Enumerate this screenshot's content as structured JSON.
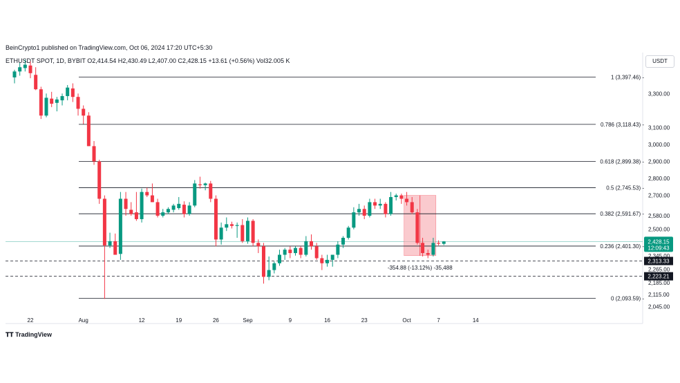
{
  "header": {
    "published": "BeinCrypto1 published on TradingView.com, Oct 06, 2024 17:20 UTC+5:30",
    "symbol": "ETHUSDT SPOT, 1D, BYBIT",
    "ohlc": "O2,414.54  H2,430.49  L2,407.00  C2,428.15  +13.61 (+0.56%)  Vol32.005 K",
    "currency": "USDT"
  },
  "footer": {
    "brand": "TradingView"
  },
  "colors": {
    "up": "#089981",
    "down": "#f23645",
    "zone": "#f7a8ae"
  },
  "chart_data": {
    "type": "candlestick",
    "title": "ETHUSDT SPOT, 1D, BYBIT",
    "ylim": [
      2010,
      3460
    ],
    "y_ticks": [
      3300,
      3100,
      3000,
      2900,
      2800,
      2700,
      2580,
      2500,
      2345,
      2265,
      2185,
      2115,
      2045
    ],
    "y_tick_labels": [
      "3,300.00",
      "3,100.00",
      "3,000.00",
      "2,900.00",
      "2,800.00",
      "2,700.00",
      "2,580.00",
      "2,500.00",
      "2,345.00",
      "2,265.00",
      "2,185.00",
      "2,115.00",
      "2,045.00"
    ],
    "x_ticks": [
      {
        "day": 0,
        "label": "22"
      },
      {
        "day": 10,
        "label": "Aug"
      },
      {
        "day": 21,
        "label": "12"
      },
      {
        "day": 28,
        "label": "19"
      },
      {
        "day": 35,
        "label": "26"
      },
      {
        "day": 41,
        "label": "Sep"
      },
      {
        "day": 49,
        "label": "9"
      },
      {
        "day": 56,
        "label": "16"
      },
      {
        "day": 63,
        "label": "23"
      },
      {
        "day": 71,
        "label": "Oct"
      },
      {
        "day": 77,
        "label": "7"
      },
      {
        "day": 84,
        "label": "14"
      }
    ],
    "fib_levels": [
      {
        "ratio": "1",
        "price": 3397.46,
        "label": "1 (3,397.46)"
      },
      {
        "ratio": "0.786",
        "price": 3118.43,
        "label": "0.786 (3,118.43)"
      },
      {
        "ratio": "0.618",
        "price": 2899.38,
        "label": "0.618 (2,899.38)"
      },
      {
        "ratio": "0.5",
        "price": 2745.53,
        "label": "0.5 (2,745.53)"
      },
      {
        "ratio": "0.382",
        "price": 2591.67,
        "label": "0.382 (2,591.67)"
      },
      {
        "ratio": "0.236",
        "price": 2401.3,
        "label": "0.236 (2,401.30)"
      },
      {
        "ratio": "0",
        "price": 2093.59,
        "label": "0 (2,093.59)"
      }
    ],
    "dashed_levels": [
      2313.33,
      2223.21
    ],
    "dashed_labels": [
      "2,313.33",
      "2,223.21"
    ],
    "last_price": {
      "value": 2428.15,
      "label": "2,428.15",
      "countdown": "12:09:43"
    },
    "measure_label": "-354.88 (-13.12%) -35,488",
    "candles": [
      {
        "day": -3,
        "o": 3395,
        "h": 3440,
        "l": 3360,
        "c": 3430
      },
      {
        "day": -2,
        "o": 3430,
        "h": 3480,
        "l": 3405,
        "c": 3455
      },
      {
        "day": -1,
        "o": 3450,
        "h": 3500,
        "l": 3430,
        "c": 3470
      },
      {
        "day": 0,
        "o": 3465,
        "h": 3490,
        "l": 3390,
        "c": 3420
      },
      {
        "day": 1,
        "o": 3410,
        "h": 3455,
        "l": 3320,
        "c": 3325
      },
      {
        "day": 2,
        "o": 3325,
        "h": 3340,
        "l": 3150,
        "c": 3170
      },
      {
        "day": 3,
        "o": 3170,
        "h": 3300,
        "l": 3160,
        "c": 3275
      },
      {
        "day": 4,
        "o": 3270,
        "h": 3310,
        "l": 3220,
        "c": 3240
      },
      {
        "day": 5,
        "o": 3245,
        "h": 3280,
        "l": 3195,
        "c": 3265
      },
      {
        "day": 6,
        "o": 3260,
        "h": 3300,
        "l": 3230,
        "c": 3285
      },
      {
        "day": 7,
        "o": 3285,
        "h": 3350,
        "l": 3260,
        "c": 3335
      },
      {
        "day": 8,
        "o": 3330,
        "h": 3360,
        "l": 3250,
        "c": 3280
      },
      {
        "day": 9,
        "o": 3280,
        "h": 3300,
        "l": 3170,
        "c": 3210
      },
      {
        "day": 10,
        "o": 3210,
        "h": 3230,
        "l": 3120,
        "c": 3170
      },
      {
        "day": 11,
        "o": 3170,
        "h": 3190,
        "l": 2990,
        "c": 2990
      },
      {
        "day": 12,
        "o": 2990,
        "h": 3020,
        "l": 2880,
        "c": 2900
      },
      {
        "day": 13,
        "o": 2900,
        "h": 2910,
        "l": 2650,
        "c": 2680
      },
      {
        "day": 14,
        "o": 2680,
        "h": 2700,
        "l": 2090,
        "c": 2405
      },
      {
        "day": 15,
        "o": 2405,
        "h": 2480,
        "l": 2390,
        "c": 2430
      },
      {
        "day": 16,
        "o": 2430,
        "h": 2475,
        "l": 2350,
        "c": 2350
      },
      {
        "day": 17,
        "o": 2355,
        "h": 2720,
        "l": 2320,
        "c": 2680
      },
      {
        "day": 18,
        "o": 2680,
        "h": 2720,
        "l": 2580,
        "c": 2620
      },
      {
        "day": 19,
        "o": 2615,
        "h": 2660,
        "l": 2580,
        "c": 2590
      },
      {
        "day": 20,
        "o": 2600,
        "h": 2720,
        "l": 2550,
        "c": 2560
      },
      {
        "day": 21,
        "o": 2560,
        "h": 2740,
        "l": 2540,
        "c": 2720
      },
      {
        "day": 22,
        "o": 2720,
        "h": 2745,
        "l": 2690,
        "c": 2700
      },
      {
        "day": 23,
        "o": 2700,
        "h": 2770,
        "l": 2660,
        "c": 2660
      },
      {
        "day": 24,
        "o": 2660,
        "h": 2680,
        "l": 2570,
        "c": 2580
      },
      {
        "day": 25,
        "o": 2580,
        "h": 2620,
        "l": 2570,
        "c": 2600
      },
      {
        "day": 26,
        "o": 2600,
        "h": 2630,
        "l": 2590,
        "c": 2620
      },
      {
        "day": 27,
        "o": 2615,
        "h": 2650,
        "l": 2600,
        "c": 2640
      },
      {
        "day": 28,
        "o": 2625,
        "h": 2690,
        "l": 2615,
        "c": 2650
      },
      {
        "day": 29,
        "o": 2645,
        "h": 2665,
        "l": 2570,
        "c": 2590
      },
      {
        "day": 30,
        "o": 2590,
        "h": 2660,
        "l": 2580,
        "c": 2640
      },
      {
        "day": 31,
        "o": 2640,
        "h": 2790,
        "l": 2630,
        "c": 2770
      },
      {
        "day": 32,
        "o": 2765,
        "h": 2810,
        "l": 2740,
        "c": 2760
      },
      {
        "day": 33,
        "o": 2760,
        "h": 2775,
        "l": 2730,
        "c": 2770
      },
      {
        "day": 34,
        "o": 2770,
        "h": 2785,
        "l": 2660,
        "c": 2680
      },
      {
        "day": 35,
        "o": 2680,
        "h": 2700,
        "l": 2400,
        "c": 2440
      },
      {
        "day": 36,
        "o": 2440,
        "h": 2540,
        "l": 2410,
        "c": 2510
      },
      {
        "day": 37,
        "o": 2510,
        "h": 2570,
        "l": 2490,
        "c": 2530
      },
      {
        "day": 38,
        "o": 2530,
        "h": 2545,
        "l": 2505,
        "c": 2520
      },
      {
        "day": 39,
        "o": 2520,
        "h": 2540,
        "l": 2450,
        "c": 2525
      },
      {
        "day": 40,
        "o": 2525,
        "h": 2560,
        "l": 2420,
        "c": 2430
      },
      {
        "day": 41,
        "o": 2430,
        "h": 2570,
        "l": 2415,
        "c": 2550
      },
      {
        "day": 42,
        "o": 2550,
        "h": 2560,
        "l": 2400,
        "c": 2420
      },
      {
        "day": 43,
        "o": 2420,
        "h": 2440,
        "l": 2360,
        "c": 2400
      },
      {
        "day": 44,
        "o": 2400,
        "h": 2420,
        "l": 2180,
        "c": 2220
      },
      {
        "day": 45,
        "o": 2220,
        "h": 2340,
        "l": 2200,
        "c": 2260
      },
      {
        "day": 46,
        "o": 2260,
        "h": 2310,
        "l": 2240,
        "c": 2300
      },
      {
        "day": 47,
        "o": 2300,
        "h": 2380,
        "l": 2285,
        "c": 2350
      },
      {
        "day": 48,
        "o": 2350,
        "h": 2390,
        "l": 2320,
        "c": 2380
      },
      {
        "day": 49,
        "o": 2380,
        "h": 2400,
        "l": 2330,
        "c": 2360
      },
      {
        "day": 50,
        "o": 2360,
        "h": 2400,
        "l": 2345,
        "c": 2390
      },
      {
        "day": 51,
        "o": 2390,
        "h": 2400,
        "l": 2330,
        "c": 2350
      },
      {
        "day": 52,
        "o": 2350,
        "h": 2460,
        "l": 2340,
        "c": 2430
      },
      {
        "day": 53,
        "o": 2430,
        "h": 2470,
        "l": 2380,
        "c": 2400
      },
      {
        "day": 54,
        "o": 2400,
        "h": 2420,
        "l": 2320,
        "c": 2330
      },
      {
        "day": 55,
        "o": 2330,
        "h": 2350,
        "l": 2260,
        "c": 2300
      },
      {
        "day": 56,
        "o": 2300,
        "h": 2350,
        "l": 2280,
        "c": 2320
      },
      {
        "day": 57,
        "o": 2320,
        "h": 2350,
        "l": 2280,
        "c": 2350
      },
      {
        "day": 58,
        "o": 2350,
        "h": 2430,
        "l": 2330,
        "c": 2410
      },
      {
        "day": 59,
        "o": 2410,
        "h": 2460,
        "l": 2390,
        "c": 2450
      },
      {
        "day": 60,
        "o": 2450,
        "h": 2520,
        "l": 2440,
        "c": 2510
      },
      {
        "day": 61,
        "o": 2510,
        "h": 2630,
        "l": 2500,
        "c": 2600
      },
      {
        "day": 62,
        "o": 2600,
        "h": 2650,
        "l": 2580,
        "c": 2620
      },
      {
        "day": 63,
        "o": 2620,
        "h": 2640,
        "l": 2560,
        "c": 2580
      },
      {
        "day": 64,
        "o": 2580,
        "h": 2680,
        "l": 2570,
        "c": 2660
      },
      {
        "day": 65,
        "o": 2660,
        "h": 2680,
        "l": 2620,
        "c": 2640
      },
      {
        "day": 66,
        "o": 2640,
        "h": 2680,
        "l": 2620,
        "c": 2650
      },
      {
        "day": 67,
        "o": 2650,
        "h": 2660,
        "l": 2570,
        "c": 2590
      },
      {
        "day": 68,
        "o": 2590,
        "h": 2720,
        "l": 2580,
        "c": 2690
      },
      {
        "day": 69,
        "o": 2690,
        "h": 2710,
        "l": 2670,
        "c": 2700
      },
      {
        "day": 70,
        "o": 2700,
        "h": 2710,
        "l": 2650,
        "c": 2680
      },
      {
        "day": 71,
        "o": 2680,
        "h": 2720,
        "l": 2640,
        "c": 2660
      },
      {
        "day": 72,
        "o": 2660,
        "h": 2690,
        "l": 2590,
        "c": 2600
      },
      {
        "day": 73,
        "o": 2600,
        "h": 2620,
        "l": 2410,
        "c": 2420
      },
      {
        "day": 74,
        "o": 2420,
        "h": 2450,
        "l": 2340,
        "c": 2360
      },
      {
        "day": 75,
        "o": 2360,
        "h": 2380,
        "l": 2330,
        "c": 2350
      },
      {
        "day": 76,
        "o": 2350,
        "h": 2450,
        "l": 2340,
        "c": 2420
      },
      {
        "day": 77,
        "o": 2420,
        "h": 2435,
        "l": 2405,
        "c": 2415
      },
      {
        "day": 78,
        "o": 2414.54,
        "h": 2430.49,
        "l": 2407.0,
        "c": 2428.15
      }
    ],
    "measure_box": {
      "day_start": 70.5,
      "day_end": 76.5,
      "top": 2700,
      "bottom": 2345
    }
  }
}
